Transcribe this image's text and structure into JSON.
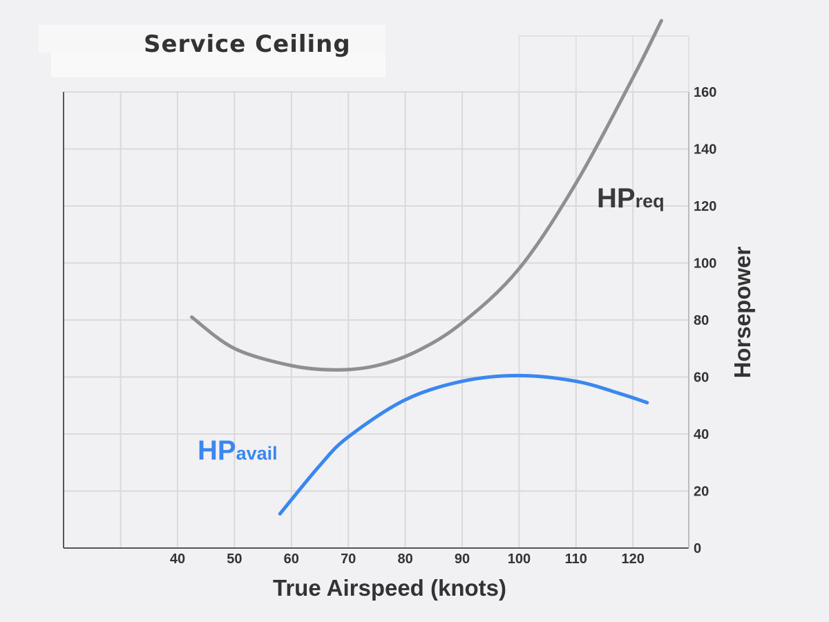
{
  "chart_data": {
    "type": "line",
    "title": "Service Ceiling",
    "xlabel": "True Airspeed (knots)",
    "ylabel": "Horsepower",
    "xlim": [
      20,
      130
    ],
    "ylim": [
      0,
      160
    ],
    "grid": true,
    "x_ticks": [
      "40",
      "50",
      "60",
      "70",
      "80",
      "90",
      "100",
      "110",
      "120"
    ],
    "y_ticks": [
      "0",
      "20",
      "40",
      "60",
      "80",
      "100",
      "120",
      "140",
      "160"
    ],
    "y_axis_side": "right",
    "series": [
      {
        "name_main": "HP",
        "name_sub": "req",
        "color": "#8f8f8f",
        "x": [
          42.5,
          50,
          60,
          68,
          75,
          82,
          90,
          100,
          110,
          120,
          125
        ],
        "y": [
          81,
          70,
          64,
          62.5,
          64,
          69,
          79,
          98,
          128,
          165,
          185
        ]
      },
      {
        "name_main": "HP",
        "name_sub": "avail",
        "color": "#3a87f0",
        "x": [
          58,
          65,
          70,
          80,
          90,
          100,
          110,
          118,
          122.5
        ],
        "y": [
          12,
          29,
          39,
          52,
          58.5,
          60.5,
          58.5,
          54,
          51
        ]
      }
    ]
  }
}
